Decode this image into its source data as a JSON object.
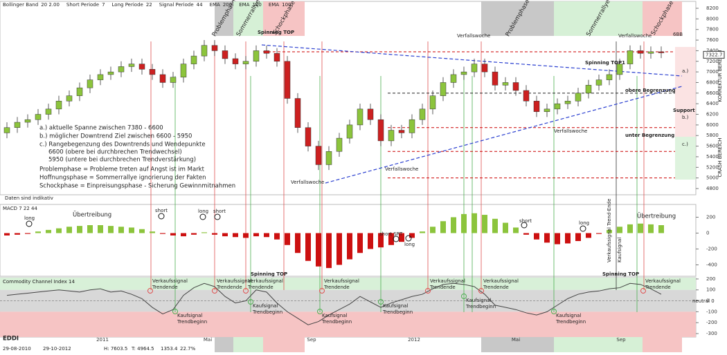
{
  "chart_data": {
    "type": "candlestick",
    "indicators": [
      {
        "name": "Bollinger Band",
        "params": "20  2.00"
      },
      {
        "name": "Short Periode",
        "params": "7"
      },
      {
        "name": "Long Periode",
        "params": "22"
      },
      {
        "name": "Signal Periode",
        "params": "44"
      },
      {
        "name": "EMA",
        "params": "200"
      },
      {
        "name": "EMA",
        "params": "100"
      },
      {
        "name": "EMA",
        "params": "100"
      }
    ],
    "phases": [
      "Problemphase",
      "Sommerrallye",
      "Schockphase",
      "Problemphase",
      "Sommerrallye",
      "Schockphase"
    ],
    "open": [
      5850,
      5950,
      6050,
      6100,
      6200,
      6300,
      6450,
      6550,
      6700,
      6850,
      6950,
      7000,
      7100,
      7150,
      7050,
      6950,
      6800,
      6900,
      7150,
      7300,
      7500,
      7400,
      7250,
      7150,
      7200,
      7400,
      7350,
      7200,
      6500,
      5950,
      5600,
      5250,
      5500,
      5750,
      6000,
      6300,
      6100,
      5700,
      5900,
      5850,
      6100,
      6300,
      6550,
      6800,
      6950,
      7000,
      7150,
      7000,
      6750,
      6800,
      6650,
      6450,
      6250,
      6300,
      6400,
      6450,
      6600,
      6750,
      6850,
      6950,
      7150,
      7400,
      7350,
      7380
    ],
    "high": [
      6050,
      6150,
      6200,
      6300,
      6400,
      6550,
      6650,
      6800,
      6950,
      7050,
      7100,
      7200,
      7250,
      7250,
      7150,
      7050,
      7000,
      7250,
      7400,
      7600,
      7600,
      7500,
      7350,
      7300,
      7500,
      7500,
      7450,
      7300,
      6600,
      6050,
      5700,
      5600,
      5850,
      6100,
      6400,
      6400,
      6200,
      6000,
      6000,
      6200,
      6400,
      6650,
      6900,
      7050,
      7100,
      7250,
      7250,
      7100,
      6900,
      6900,
      6750,
      6550,
      6400,
      6500,
      6550,
      6700,
      6850,
      6950,
      7050,
      7250,
      7500,
      7500,
      7480,
      7480
    ],
    "low": [
      5750,
      5850,
      5950,
      6000,
      6100,
      6200,
      6350,
      6450,
      6600,
      6750,
      6850,
      6900,
      7000,
      6950,
      6850,
      6700,
      6700,
      6800,
      7050,
      7200,
      7300,
      7150,
      7050,
      7050,
      7100,
      7250,
      7100,
      6400,
      5850,
      5500,
      5150,
      5150,
      5400,
      5650,
      5900,
      6000,
      5600,
      5600,
      5750,
      5750,
      6000,
      6200,
      6450,
      6700,
      6850,
      6900,
      6900,
      6650,
      6650,
      6550,
      6350,
      6150,
      6150,
      6200,
      6300,
      6350,
      6500,
      6650,
      6750,
      6850,
      7050,
      7250,
      7250,
      7260
    ],
    "close": [
      5950,
      6050,
      6100,
      6200,
      6300,
      6450,
      6550,
      6700,
      6850,
      6950,
      7000,
      7100,
      7150,
      7050,
      6950,
      6800,
      6900,
      7150,
      7300,
      7500,
      7400,
      7250,
      7150,
      7200,
      7400,
      7350,
      7200,
      6500,
      5950,
      5600,
      5250,
      5500,
      5750,
      6000,
      6300,
      6100,
      5700,
      5900,
      5850,
      6100,
      6300,
      6550,
      6800,
      6950,
      7000,
      7150,
      7000,
      6750,
      6800,
      6650,
      6450,
      6250,
      6300,
      6400,
      6450,
      6600,
      6750,
      6850,
      6950,
      7150,
      7400,
      7350,
      7380,
      7360
    ],
    "up_color": "#8cc43c",
    "down_color": "#cc2020",
    "ylim": [
      4800,
      8200
    ],
    "yticks": [
      4800,
      5000,
      5200,
      5400,
      5600,
      5800,
      6000,
      6200,
      6400,
      6600,
      6800,
      7000,
      7200,
      7400,
      7600,
      7800,
      8000,
      8200
    ],
    "last_price": 7322.7,
    "levels": [
      7380,
      6600,
      5950,
      5500,
      5000
    ],
    "x_labels": [
      "2011",
      "Mai",
      "Sep",
      "2012",
      "Mai",
      "Sep"
    ],
    "annotations": [
      "Spinning TOP",
      "Verfallswoche",
      "Verfallswoche",
      "Spinning TOP1",
      "a.)",
      "Support",
      "b.)",
      "c.)",
      "obere Begrenzung",
      "unter Begrenzung",
      "Verfallswoche",
      "Verfallswoche",
      "Verfallswoche",
      "Daten sind indikativ",
      "6BB"
    ],
    "zones": [
      "KORREKTUR BEREICH",
      "CRASH BEREICH"
    ],
    "notes": [
      "a.) aktuelle  Spanne zwischen 7380 - 6600",
      "b.) möglicher Downtrend Ziel zwischen 6600 - 5950",
      "c.) Rangebegenzung des Downtrends und Wendepunkte",
      "6600 (obere bei durchbrechen Trendwechsel)",
      "5950 (untere bei durchbrechen Trendverstärkung)",
      "Problemphase = Probleme treten auf Angst ist im Markt",
      "Hoffnungsphase = Sommerrallye ignorierung der Fakten",
      "Schockphase = Einpreisungsphase - Sicherung Gewinnmitnahmen"
    ],
    "macd": {
      "title": "MACD  7  22  44",
      "values": [
        -30,
        -20,
        -10,
        20,
        40,
        60,
        80,
        90,
        100,
        100,
        90,
        80,
        70,
        50,
        20,
        -10,
        -30,
        -40,
        -20,
        10,
        -20,
        -40,
        -50,
        -60,
        -40,
        -50,
        -80,
        -150,
        -250,
        -350,
        -420,
        -440,
        -400,
        -330,
        -250,
        -200,
        -180,
        -150,
        -110,
        -60,
        20,
        80,
        150,
        200,
        240,
        250,
        230,
        180,
        130,
        70,
        -20,
        -80,
        -120,
        -140,
        -130,
        -100,
        -60,
        -10,
        40,
        80,
        110,
        120,
        110,
        100
      ],
      "pos_color": "#8cc43c",
      "neg_color": "#cc1010",
      "ylim": [
        -500,
        300
      ],
      "yticks": [
        200,
        0,
        -200,
        -400
      ],
      "annotations": [
        "Übertreibung",
        "Übertreibung",
        "long",
        "short",
        "long",
        "short",
        "short SRT",
        "long",
        "short",
        "long"
      ]
    },
    "cci": {
      "title": "Commodity Channel Index  14",
      "values": [
        50,
        60,
        70,
        80,
        90,
        100,
        90,
        80,
        100,
        110,
        80,
        90,
        60,
        20,
        -60,
        -120,
        -80,
        50,
        120,
        160,
        130,
        40,
        -20,
        0,
        100,
        80,
        -20,
        -100,
        -160,
        -220,
        -190,
        -130,
        -80,
        -30,
        40,
        -10,
        -60,
        -20,
        10,
        40,
        60,
        110,
        150,
        160,
        150,
        130,
        60,
        -40,
        -60,
        -80,
        -110,
        -130,
        -100,
        -40,
        20,
        60,
        80,
        90,
        110,
        120,
        160,
        150,
        110,
        60
      ],
      "color": "#444444",
      "ylim": [
        -300,
        250
      ],
      "yticks": [
        200,
        100,
        0,
        -100,
        -200,
        -300
      ],
      "annotations": [
        "Spinning TOP",
        "Spinning TOP",
        "neutral 0",
        "Verkaufssignal Trend-Ende",
        "Kaufsignal"
      ],
      "sell_signals": [
        "Verkaufssignal",
        "Trendende"
      ],
      "buy_signals": [
        "Kaufsignal",
        "Trendbeginn"
      ]
    },
    "footer": [
      "EDDI",
      "29-08-2010",
      "29-10-2012",
      "H: 7603.5",
      "T: 4964.5",
      "1353.4",
      "22.7%"
    ]
  }
}
